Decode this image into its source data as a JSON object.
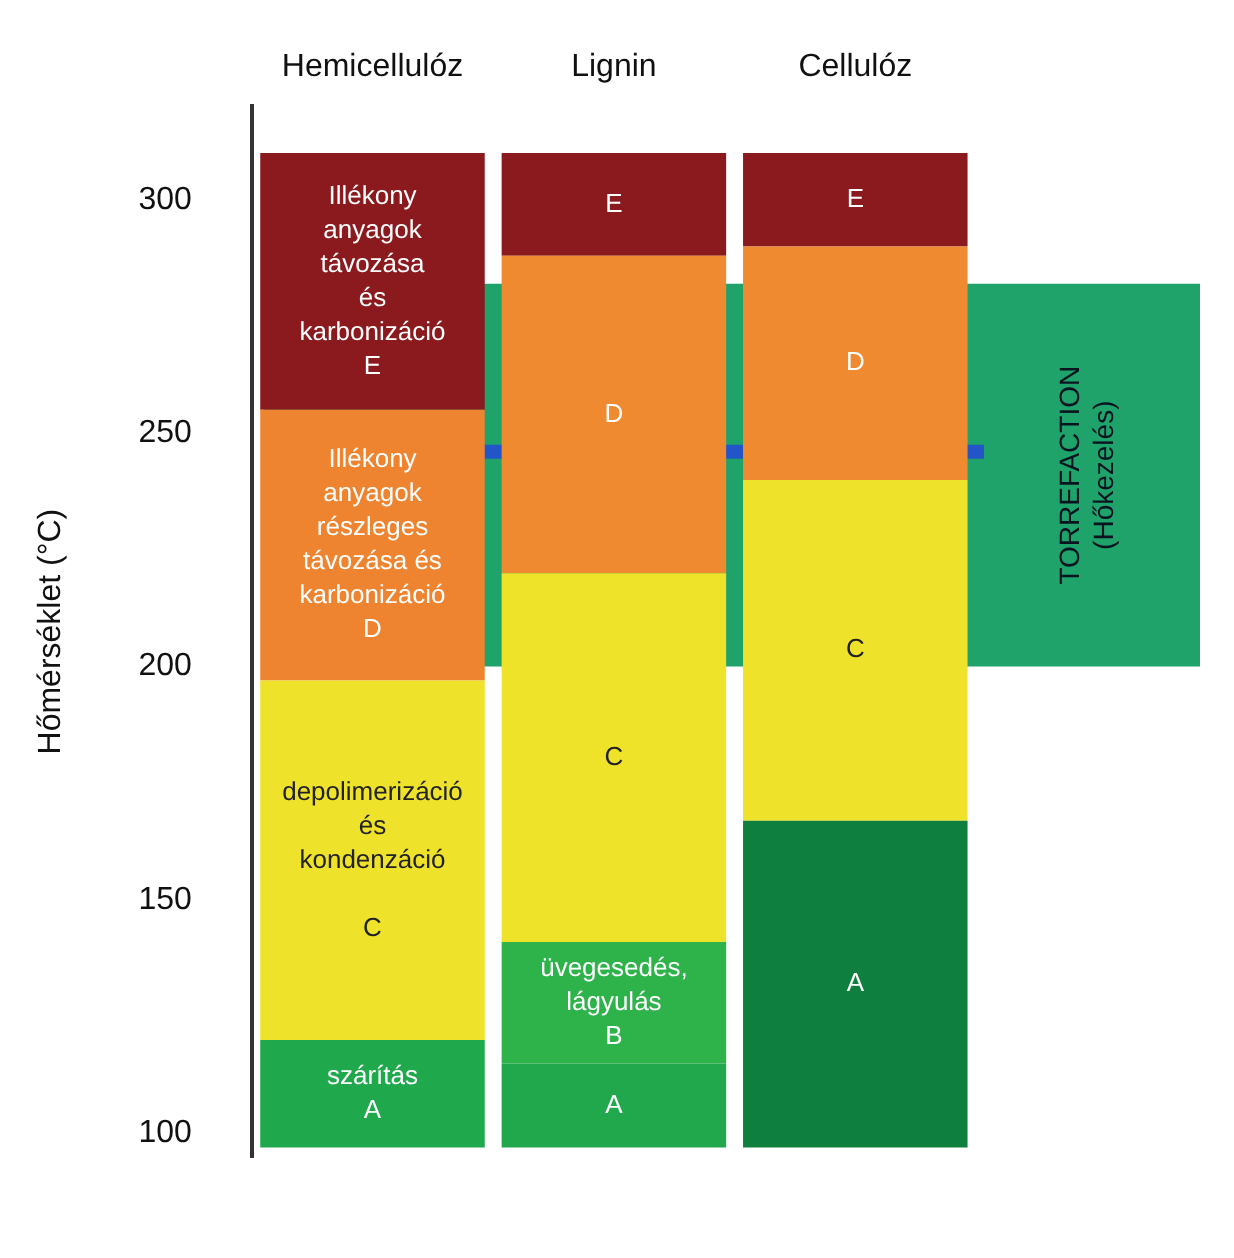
{
  "chart_data": {
    "type": "bar",
    "categories": [
      "Hemicellulóz",
      "Lignin",
      "Cellulóz"
    ],
    "ylabel": "Hőmérséklet (°C)",
    "ylim": [
      95,
      320
    ],
    "yticks": [
      100,
      150,
      200,
      250,
      300
    ],
    "grid": false,
    "legend": false,
    "series": [
      {
        "base": [
          97,
          97,
          97
        ],
        "values": [
          23,
          18,
          70
        ],
        "colors": [
          "#1fa84c",
          "#22a84c",
          "#0f7f3f"
        ],
        "value_labels": [
          "szárítás\nA",
          "A",
          "A"
        ]
      },
      {
        "base": [
          null,
          115,
          null
        ],
        "values": [
          null,
          26,
          null
        ],
        "colors": [
          null,
          "#2db34a",
          null
        ],
        "value_labels": [
          null,
          "üvegesedés,\nlágyulás\nB",
          null
        ]
      },
      {
        "base": [
          120,
          141,
          167
        ],
        "values": [
          77,
          79,
          73
        ],
        "colors": [
          "#eee22a",
          "#efe32a",
          "#eee22a"
        ],
        "value_labels": [
          "depolimerizáció\nés\nkondenzáció\n\nC",
          "C",
          "C"
        ]
      },
      {
        "base": [
          197,
          220,
          240
        ],
        "values": [
          58,
          68,
          50
        ],
        "colors": [
          "#ee8430",
          "#f08a30",
          "#f08a30"
        ],
        "value_labels": [
          "Illékony\nanyagok\nrészleges\ntávozása és\nkarbonizáció\nD",
          "D",
          "D"
        ]
      },
      {
        "base": [
          255,
          288,
          290
        ],
        "values": [
          55,
          22,
          20
        ],
        "colors": [
          "#8b1a1e",
          "#8b1a1e",
          "#8b1a1e"
        ],
        "value_labels": [
          "Illékony\nanyagok\ntávozása\nés\nkarbonizáció\nE",
          "E",
          "E"
        ]
      }
    ],
    "bands": [
      {
        "axis": "y",
        "from": 200,
        "to": 282,
        "label": "TORREFACTION\n(Hőkezelés)",
        "color": "#1fa36a"
      }
    ],
    "ref_lines": [
      {
        "axis": "y",
        "value": 246,
        "color": "#2256c8"
      }
    ]
  }
}
